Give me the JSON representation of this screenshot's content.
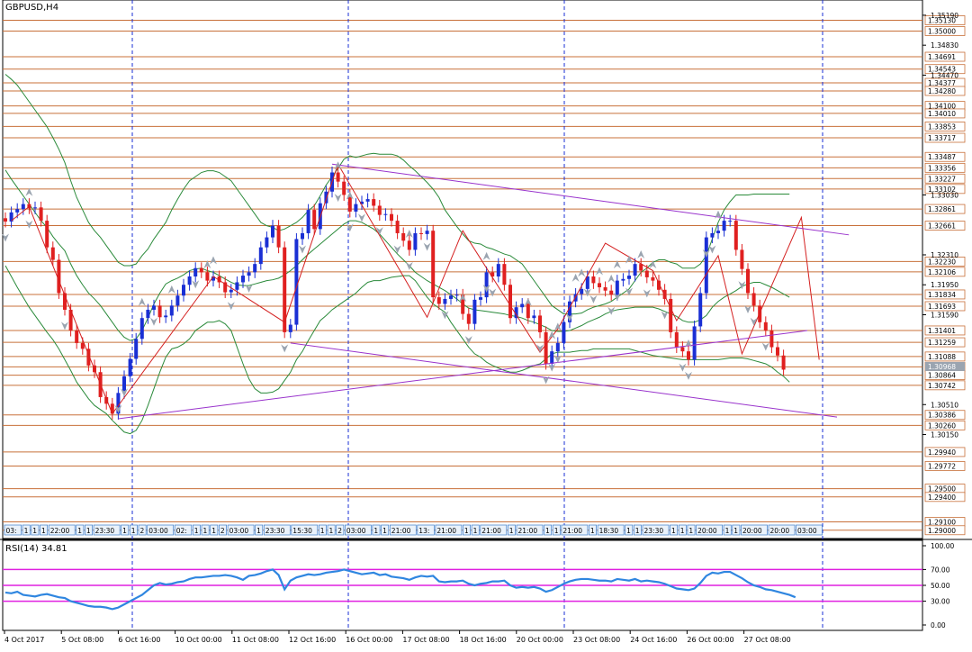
{
  "chart_data": [
    {
      "type": "candlestick",
      "title": "GBPUSD,H4",
      "ylim": [
        1.289,
        1.352
      ],
      "price_axis_ticks": [
        "1.35190",
        "1.34830",
        "1.34470",
        "1.33030",
        "1.32310",
        "1.31950",
        "1.31590",
        "1.30510",
        "1.30150"
      ],
      "level_labels": [
        "1.35130",
        "1.35000",
        "1.34691",
        "1.34543",
        "1.34377",
        "1.34280",
        "1.34100",
        "1.34010",
        "1.33853",
        "1.33717",
        "1.33487",
        "1.33356",
        "1.33227",
        "1.33102",
        "1.32861",
        "1.32661",
        "1.32230",
        "1.32106",
        "1.31834",
        "1.31693",
        "1.31401",
        "1.31259",
        "1.31088",
        "1.30964",
        "1.30864",
        "1.30742",
        "1.30386",
        "1.30260",
        "1.29940",
        "1.29772",
        "1.29500",
        "1.29400",
        "1.29100",
        "1.29000"
      ],
      "current_price": "1.30968",
      "x_labels": [
        "4 Oct 2017",
        "5 Oct 08:00",
        "6 Oct 16:00",
        "10 Oct 00:00",
        "11 Oct 08:00",
        "12 Oct 16:00",
        "16 Oct 00:00",
        "17 Oct 08:00",
        "18 Oct 16:00",
        "20 Oct 00:00",
        "23 Oct 08:00",
        "24 Oct 16:00",
        "26 Oct 00:00",
        "27 Oct 08:00"
      ],
      "time_markers": [
        "03:",
        "1",
        "1",
        "1",
        "22:00",
        "1",
        "1",
        "23:30",
        "1",
        "1",
        "2",
        "03:00",
        "02:",
        "1",
        "1",
        "1",
        "2",
        "03:00",
        "1",
        "23:30",
        "15:30",
        "1",
        "1",
        "2",
        "03:00",
        "1",
        "1",
        "21:00",
        "13:",
        "21:00",
        "1",
        "1",
        "21:00",
        "1",
        "21:00",
        "1",
        "1",
        "21:00",
        "1",
        "18:30",
        "1",
        "1",
        "23:30",
        "1",
        "1",
        "1",
        "20:00",
        "1",
        "1",
        "20:00",
        "20:00",
        "03:00"
      ],
      "close_series": [
        1.3271,
        1.3282,
        1.3286,
        1.3292,
        1.3287,
        1.3288,
        1.3272,
        1.324,
        1.3225,
        1.3185,
        1.3165,
        1.314,
        1.3125,
        1.3118,
        1.3098,
        1.309,
        1.306,
        1.3052,
        1.304,
        1.3065,
        1.3085,
        1.3106,
        1.313,
        1.3155,
        1.3165,
        1.317,
        1.3156,
        1.3158,
        1.317,
        1.3182,
        1.3195,
        1.3205,
        1.3215,
        1.321,
        1.32,
        1.3205,
        1.3198,
        1.3186,
        1.3189,
        1.3198,
        1.3206,
        1.321,
        1.322,
        1.324,
        1.3252,
        1.3266,
        1.324,
        1.3138,
        1.3147,
        1.325,
        1.3257,
        1.3285,
        1.3262,
        1.3293,
        1.3307,
        1.333,
        1.3319,
        1.3303,
        1.3283,
        1.3292,
        1.3295,
        1.3298,
        1.329,
        1.3279,
        1.328,
        1.3272,
        1.3257,
        1.3248,
        1.3237,
        1.3257,
        1.3256,
        1.326,
        1.318,
        1.3172,
        1.3178,
        1.3182,
        1.3183,
        1.316,
        1.3148,
        1.3177,
        1.318,
        1.321,
        1.3205,
        1.322,
        1.3195,
        1.3155,
        1.3168,
        1.3172,
        1.3155,
        1.3158,
        1.3138,
        1.31,
        1.3115,
        1.3125,
        1.315,
        1.3175,
        1.3184,
        1.319,
        1.3205,
        1.3197,
        1.3192,
        1.3188,
        1.3183,
        1.32,
        1.3202,
        1.3206,
        1.322,
        1.3212,
        1.3204,
        1.32,
        1.3189,
        1.3178,
        1.3138,
        1.312,
        1.3115,
        1.3105,
        1.3145,
        1.3185,
        1.3252,
        1.3257,
        1.326,
        1.3272,
        1.3272,
        1.3237,
        1.3214,
        1.3185,
        1.317,
        1.315,
        1.314,
        1.312,
        1.311,
        1.3093
      ],
      "series": [
        {
          "name": "",
          "color": "#2a8a3a",
          "values": [
            1.3448,
            1.3442,
            1.3435,
            1.3425,
            1.3415,
            1.3405,
            1.3395,
            1.3385,
            1.3372,
            1.3358,
            1.3342,
            1.332,
            1.33,
            1.3285,
            1.327,
            1.326,
            1.3252,
            1.3242,
            1.3232,
            1.3222,
            1.3218,
            1.3218,
            1.322,
            1.323,
            1.3238,
            1.325,
            1.326,
            1.327,
            1.3285,
            1.3298,
            1.331,
            1.332,
            1.3325,
            1.333,
            1.3332,
            1.3332,
            1.333,
            1.3325,
            1.332,
            1.331,
            1.33,
            1.329,
            1.328,
            1.327,
            1.3266,
            1.3264,
            1.326,
            1.3262,
            1.3266,
            1.327,
            1.3276,
            1.3284,
            1.329,
            1.3302,
            1.3315,
            1.3325,
            1.3335,
            1.3346,
            1.335,
            1.3348,
            1.335,
            1.3352,
            1.3353,
            1.3352,
            1.3352,
            1.3352,
            1.335,
            1.3345,
            1.3338,
            1.3332,
            1.3325,
            1.3318,
            1.331,
            1.33,
            1.3285,
            1.3275,
            1.3265,
            1.3256,
            1.3248,
            1.3245,
            1.3244,
            1.324,
            1.3238,
            1.3235,
            1.3232,
            1.323,
            1.3225,
            1.322,
            1.321,
            1.32,
            1.319,
            1.318,
            1.317,
            1.3165,
            1.316,
            1.316,
            1.316,
            1.3161,
            1.3165,
            1.3168,
            1.317,
            1.3172,
            1.3175,
            1.318,
            1.3185,
            1.319,
            1.32,
            1.321,
            1.3215,
            1.3222,
            1.3225,
            1.3225,
            1.3222,
            1.322,
            1.3215,
            1.3215,
            1.3215,
            1.322,
            1.323,
            1.325,
            1.327,
            1.3285,
            1.3295,
            1.3303,
            1.3303,
            1.3303,
            1.3304,
            1.3304,
            1.3304,
            1.3304,
            1.3304,
            1.3304,
            1.3304
          ]
        },
        {
          "name": "",
          "color": "#2a8a3a",
          "values": [
            1.3333,
            1.3322,
            1.3312,
            1.3302,
            1.3292,
            1.3282,
            1.3272,
            1.3264,
            1.3253,
            1.3244,
            1.3236,
            1.322,
            1.3206,
            1.3195,
            1.3185,
            1.3178,
            1.317,
            1.316,
            1.315,
            1.314,
            1.3132,
            1.3128,
            1.313,
            1.314,
            1.3155,
            1.3172,
            1.3185,
            1.3196,
            1.32,
            1.3203,
            1.3207,
            1.3212,
            1.3214,
            1.3215,
            1.3212,
            1.321,
            1.3206,
            1.3202,
            1.3198,
            1.3195,
            1.3194,
            1.3194,
            1.3196,
            1.3198,
            1.32,
            1.3201,
            1.3203,
            1.3207,
            1.3212,
            1.3218,
            1.3225,
            1.3232,
            1.3238,
            1.3244,
            1.325,
            1.3256,
            1.3262,
            1.3268,
            1.3272,
            1.3272,
            1.327,
            1.3266,
            1.3262,
            1.3256,
            1.3248,
            1.324,
            1.3232,
            1.3225,
            1.3218,
            1.321,
            1.3205,
            1.32,
            1.3196,
            1.3192,
            1.3188,
            1.3183,
            1.3178,
            1.3172,
            1.3167,
            1.3165,
            1.3164,
            1.3163,
            1.3162,
            1.3161,
            1.316,
            1.3158,
            1.3157,
            1.3155,
            1.3152,
            1.315,
            1.3147,
            1.3144,
            1.314,
            1.3139,
            1.3139,
            1.314,
            1.3143,
            1.3146,
            1.315,
            1.3153,
            1.3156,
            1.316,
            1.3163,
            1.3165,
            1.3166,
            1.3167,
            1.3168,
            1.3168,
            1.3168,
            1.3168,
            1.3166,
            1.3163,
            1.316,
            1.3157,
            1.3152,
            1.315,
            1.315,
            1.3153,
            1.3158,
            1.3168,
            1.3175,
            1.318,
            1.3184,
            1.3188,
            1.3193,
            1.3196,
            1.3198,
            1.3198,
            1.3195,
            1.3192,
            1.3188,
            1.3184,
            1.318
          ]
        },
        {
          "name": "",
          "color": "#2a8a3a",
          "values": [
            1.3218,
            1.3205,
            1.3192,
            1.318,
            1.3168,
            1.3158,
            1.3148,
            1.3138,
            1.3129,
            1.3118,
            1.3105,
            1.3092,
            1.3078,
            1.3068,
            1.3058,
            1.305,
            1.3045,
            1.304,
            1.3032,
            1.3025,
            1.3018,
            1.3016,
            1.302,
            1.3032,
            1.305,
            1.307,
            1.309,
            1.3108,
            1.3118,
            1.312,
            1.3124,
            1.313,
            1.314,
            1.3145,
            1.315,
            1.315,
            1.3152,
            1.3148,
            1.314,
            1.312,
            1.31,
            1.3082,
            1.307,
            1.3065,
            1.3065,
            1.3066,
            1.307,
            1.308,
            1.309,
            1.3105,
            1.3115,
            1.3128,
            1.314,
            1.3152,
            1.3158,
            1.3165,
            1.317,
            1.3175,
            1.318,
            1.3185,
            1.3192,
            1.3198,
            1.32,
            1.32,
            1.3202,
            1.3204,
            1.3205,
            1.3206,
            1.3206,
            1.32,
            1.319,
            1.318,
            1.3172,
            1.3167,
            1.3162,
            1.315,
            1.314,
            1.313,
            1.312,
            1.3112,
            1.3108,
            1.3102,
            1.3098,
            1.3095,
            1.3092,
            1.309,
            1.309,
            1.3092,
            1.3095,
            1.3098,
            1.31,
            1.3106,
            1.3112,
            1.3114,
            1.3114,
            1.3114,
            1.3115,
            1.3116,
            1.3116,
            1.3118,
            1.3118,
            1.3118,
            1.3118,
            1.3118,
            1.3118,
            1.3118,
            1.3116,
            1.3114,
            1.3112,
            1.311,
            1.3109,
            1.3108,
            1.3107,
            1.3106,
            1.3105,
            1.3105,
            1.3105,
            1.3105,
            1.3105,
            1.3105,
            1.3105,
            1.3106,
            1.3107,
            1.3107,
            1.3107,
            1.3106,
            1.3104,
            1.3102,
            1.31,
            1.3096,
            1.309,
            1.3085,
            1.3078
          ]
        }
      ],
      "zigzag": [
        [
          1,
          1.3272
        ],
        [
          4,
          1.3289
        ],
        [
          18,
          1.304
        ],
        [
          35,
          1.3205
        ],
        [
          47,
          1.315
        ],
        [
          56,
          1.334
        ],
        [
          71,
          1.3156
        ],
        [
          77,
          1.326
        ],
        [
          90,
          1.3114
        ],
        [
          93,
          1.3142
        ],
        [
          101,
          1.3245
        ],
        [
          109,
          1.3212
        ],
        [
          113,
          1.3152
        ],
        [
          120,
          1.323
        ],
        [
          124,
          1.3112
        ],
        [
          134,
          1.3276
        ],
        [
          137,
          1.3105
        ]
      ],
      "trendlines": [
        {
          "from": [
            19,
            1.3034
          ],
          "to": [
            135,
            1.314
          ]
        },
        {
          "from": [
            55,
            1.334
          ],
          "to": [
            142,
            1.3255
          ]
        },
        {
          "from": [
            48,
            1.3125
          ],
          "to": [
            140,
            1.3036
          ]
        }
      ],
      "fractal_up_bars": [
        4,
        23,
        28,
        34,
        35,
        56,
        58,
        68,
        77,
        81,
        88,
        92,
        93,
        96,
        97,
        100,
        102,
        103,
        105,
        107,
        109,
        115,
        120
      ],
      "fractal_down_bars": [
        0,
        4,
        10,
        19,
        20,
        25,
        32,
        38,
        41,
        47,
        50,
        56,
        58,
        60,
        63,
        66,
        68,
        71,
        74,
        78,
        81,
        82,
        90,
        91,
        92,
        93,
        95,
        98,
        99,
        102,
        103,
        105,
        108,
        111,
        114,
        115,
        118,
        119,
        124,
        125,
        126,
        128,
        132,
        134,
        138
      ],
      "colors": {
        "bull": "#1a2fd4",
        "bear": "#e02020",
        "zigzag": "#d42020",
        "trendline": "#9933cc",
        "level": "#c8703a",
        "grid": "#1a2fd4"
      }
    },
    {
      "type": "line",
      "title": "RSI(14) 34.81",
      "ylim": [
        0,
        100
      ],
      "levels": [
        30,
        50,
        70
      ],
      "axis_ticks": [
        "100.00",
        "70.00",
        "50.00",
        "30.00",
        "0.00"
      ],
      "colors": {
        "line": "#2f86e0",
        "level": "#e020e0"
      },
      "values": [
        41,
        40,
        42,
        38,
        37,
        36,
        38,
        39,
        37,
        35,
        34,
        30,
        28,
        26,
        24,
        23,
        23,
        22,
        20,
        22,
        26,
        30,
        34,
        38,
        44,
        50,
        53,
        51,
        52,
        54,
        55,
        58,
        60,
        60,
        61,
        62,
        62,
        63,
        62,
        60,
        57,
        62,
        63,
        65,
        68,
        70,
        63,
        45,
        56,
        60,
        62,
        64,
        63,
        64,
        66,
        67,
        68,
        70,
        68,
        66,
        64,
        65,
        66,
        63,
        64,
        61,
        60,
        59,
        57,
        60,
        62,
        61,
        62,
        55,
        54,
        55,
        55,
        56,
        52,
        50,
        52,
        53,
        55,
        55,
        56,
        50,
        47,
        48,
        47,
        48,
        46,
        42,
        44,
        48,
        52,
        55,
        57,
        58,
        58,
        57,
        56,
        56,
        55,
        58,
        57,
        56,
        58,
        55,
        56,
        55,
        54,
        52,
        49,
        46,
        45,
        44,
        46,
        53,
        62,
        66,
        65,
        67,
        67,
        63,
        59,
        54,
        50,
        48,
        45,
        44,
        42,
        40,
        38,
        35
      ]
    }
  ]
}
